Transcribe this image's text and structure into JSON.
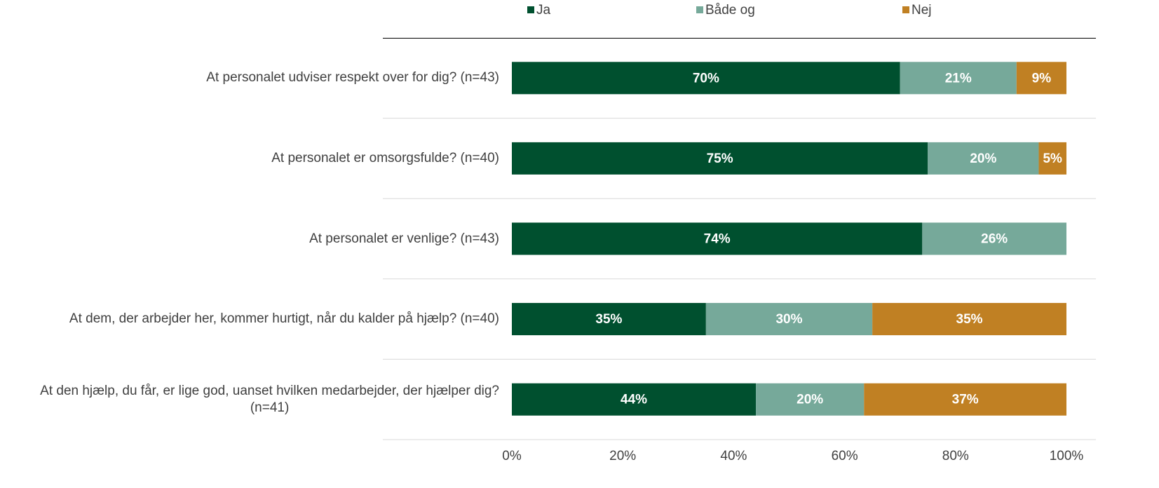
{
  "chart_data": {
    "type": "stacked-barh",
    "categories": [
      "At personalet udviser respekt over for dig? (n=43)",
      "At personalet er omsorgsfulde? (n=40)",
      "At personalet er venlige? (n=43)",
      "At dem, der arbejder her, kommer hurtigt, når du kalder på hjælp? (n=40)",
      "At den hjælp, du får, er lige god, uanset hvilken medarbejder, der hjælper dig?\n(n=41)"
    ],
    "series": [
      {
        "name": "Ja",
        "color": "#00502f",
        "values": [
          70,
          75,
          74,
          35,
          44
        ],
        "value_labels": [
          "70%",
          "75%",
          "74%",
          "35%",
          "44%"
        ]
      },
      {
        "name": "Både og",
        "color": "#76a99a",
        "values": [
          21,
          20,
          26,
          30,
          19.5
        ],
        "value_labels": [
          "21%",
          "20%",
          "26%",
          "30%",
          "20%"
        ]
      },
      {
        "name": "Nej",
        "color": "#c08023",
        "values": [
          9,
          5,
          null,
          35,
          36.5
        ],
        "value_labels": [
          "9%",
          "5%",
          null,
          "35%",
          "37%"
        ]
      }
    ],
    "xlim": [
      0,
      100
    ],
    "xticks": [
      {
        "value": 0,
        "label": "0%"
      },
      {
        "value": 20,
        "label": "20%"
      },
      {
        "value": 40,
        "label": "40%"
      },
      {
        "value": 60,
        "label": "60%"
      },
      {
        "value": 80,
        "label": "80%"
      },
      {
        "value": 100,
        "label": "100%"
      }
    ],
    "legend": "top"
  }
}
